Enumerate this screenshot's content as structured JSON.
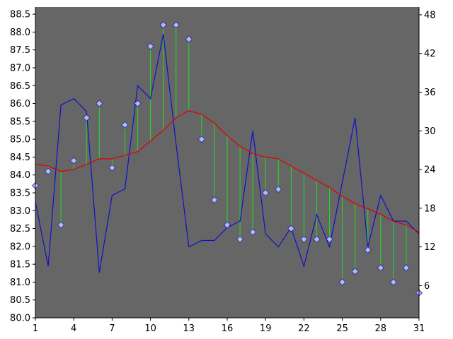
{
  "chart_data": {
    "type": "line",
    "x": [
      1,
      2,
      3,
      4,
      5,
      6,
      7,
      8,
      9,
      10,
      11,
      12,
      13,
      14,
      15,
      16,
      17,
      18,
      19,
      20,
      21,
      22,
      23,
      24,
      25,
      26,
      27,
      28,
      29,
      30,
      31
    ],
    "x_ticks": [
      1,
      4,
      7,
      10,
      13,
      16,
      19,
      22,
      25,
      28,
      31
    ],
    "left_axis": {
      "range": [
        80.0,
        88.7
      ],
      "ticks": [
        80.0,
        80.5,
        81.0,
        81.5,
        82.0,
        82.5,
        83.0,
        83.5,
        84.0,
        84.5,
        85.0,
        85.5,
        86.0,
        86.5,
        87.0,
        87.5,
        88.0,
        88.5
      ],
      "tick_labels": [
        "80.0",
        "80.5",
        "81.0",
        "81.5",
        "82.0",
        "82.5",
        "83.0",
        "83.5",
        "84.0",
        "84.5",
        "85.0",
        "85.5",
        "86.0",
        "86.5",
        "87.0",
        "87.5",
        "88.0",
        "88.5"
      ]
    },
    "right_axis": {
      "range": [
        1,
        49.2
      ],
      "ticks": [
        6,
        12,
        18,
        24,
        30,
        36,
        42,
        48
      ],
      "tick_labels": [
        "6",
        "12",
        "18",
        "24",
        "30",
        "36",
        "42",
        "48"
      ]
    },
    "grid": false,
    "series": [
      {
        "type": "scatter",
        "axis": "left",
        "marker": "diamond",
        "color": "#b0b8ff",
        "values": [
          83.7,
          84.1,
          82.6,
          84.4,
          85.6,
          86.0,
          84.2,
          85.4,
          86.0,
          87.6,
          88.2,
          88.2,
          87.8,
          85.0,
          83.3,
          82.6,
          82.2,
          82.4,
          83.5,
          83.6,
          82.5,
          82.2,
          82.2,
          82.2,
          81.0,
          81.3,
          81.9,
          81.4,
          81.0,
          81.4,
          80.7
        ]
      },
      {
        "type": "line",
        "axis": "left",
        "color": "#e00000",
        "values": [
          84.3,
          84.25,
          84.1,
          84.15,
          84.3,
          84.45,
          84.45,
          84.55,
          84.65,
          84.95,
          85.25,
          85.6,
          85.8,
          85.7,
          85.45,
          85.1,
          84.8,
          84.6,
          84.5,
          84.45,
          84.25,
          84.05,
          83.85,
          83.65,
          83.4,
          83.2,
          83.05,
          82.9,
          82.7,
          82.6,
          82.4
        ]
      },
      {
        "type": "line",
        "axis": "right",
        "color": "#1010cc",
        "values": [
          19,
          9,
          34,
          35,
          33,
          8,
          20,
          21,
          37,
          35,
          45,
          28,
          12,
          13,
          13,
          15,
          16,
          30,
          14,
          12,
          15,
          9,
          17,
          12,
          22,
          32,
          12,
          20,
          16,
          16,
          14
        ]
      }
    ],
    "drop_lines": {
      "color": "#22dd22",
      "from": "moving-average line",
      "to": "scatter points"
    }
  },
  "colors": {
    "plot_background": "#666666",
    "page_background": "#ffffff",
    "axis": "#000000"
  }
}
